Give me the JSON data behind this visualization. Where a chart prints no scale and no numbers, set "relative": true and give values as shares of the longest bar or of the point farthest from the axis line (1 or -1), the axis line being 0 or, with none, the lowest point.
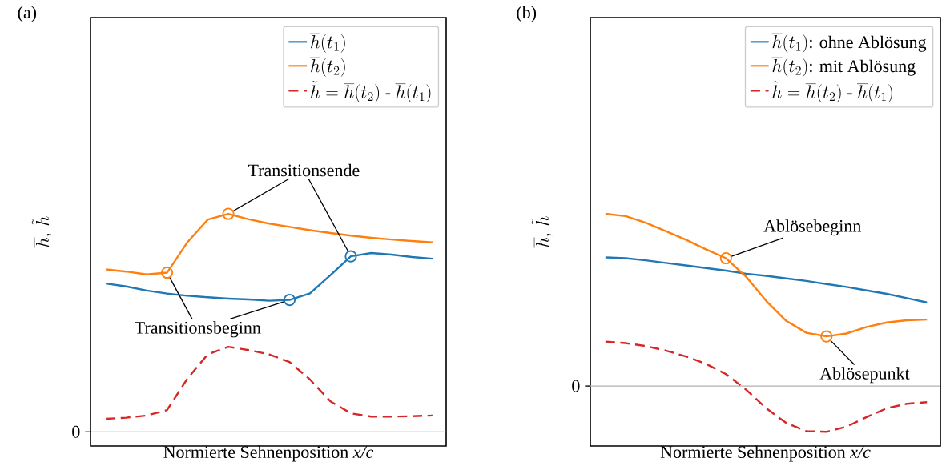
{
  "chart_data": [
    {
      "type": "line",
      "title": "(a)",
      "xlabel": "Normierte Sehnenposition *x/c*",
      "ylabel": "\\overline{h},\\,\\tilde{h}",
      "relative": true,
      "legend": "top right",
      "categories": [
        null,
        null,
        null,
        null,
        null,
        null,
        null,
        null,
        null,
        null,
        null,
        null,
        null,
        null,
        null,
        null,
        null
      ],
      "series": [
        {
          "name": "\\overline{h}(t_1)",
          "color": "#1f77b4",
          "line_style": "solid",
          "values": [
            0.68,
            0.667,
            0.648,
            0.634,
            0.624,
            0.617,
            0.611,
            0.607,
            0.601,
            0.605,
            0.635,
            0.719,
            0.805,
            0.82,
            0.813,
            0.802,
            0.794
          ]
        },
        {
          "name": "\\overline{h}(t_2)",
          "color": "#ff7f0e",
          "line_style": "solid",
          "values": [
            0.745,
            0.735,
            0.722,
            0.73,
            0.87,
            0.974,
            1.0,
            0.975,
            0.955,
            0.94,
            0.925,
            0.912,
            0.9,
            0.89,
            0.882,
            0.875,
            0.869
          ]
        },
        {
          "name": "\\tilde{h} = \\overline{h}(t_2)\\mbox{ - }\\overline{h}(t_1)",
          "color": "#d62728",
          "line_style": "dashed",
          "values": [
            0.06,
            0.065,
            0.075,
            0.1,
            0.245,
            0.356,
            0.39,
            0.375,
            0.355,
            0.32,
            0.24,
            0.14,
            0.085,
            0.07,
            0.07,
            0.072,
            0.075
          ]
        }
      ],
      "ref_lines": [
        {
          "axis": "y",
          "value": 0,
          "label": "0",
          "color": "#b0b0b0"
        }
      ],
      "annotations": [
        "Transitionsende",
        "Transitionsbeginn"
      ]
    },
    {
      "type": "line",
      "title": "(b)",
      "xlabel": "Normierte Sehnenposition *x/c*",
      "ylabel": "\\overline{h},\\,\\tilde{h}",
      "relative": true,
      "legend": "top right",
      "categories": [
        null,
        null,
        null,
        null,
        null,
        null,
        null,
        null,
        null,
        null,
        null,
        null,
        null,
        null,
        null,
        null,
        null
      ],
      "series": [
        {
          "name": "\\overline{h}(t_1)\\mbox{: ohne Ablösung}",
          "color": "#1f77b4",
          "line_style": "solid",
          "values": [
            0.747,
            0.742,
            0.73,
            0.715,
            0.7,
            0.685,
            0.67,
            0.652,
            0.64,
            0.625,
            0.61,
            0.592,
            0.575,
            0.555,
            0.535,
            0.51,
            0.485
          ]
        },
        {
          "name": "\\overline{h}(t_2)\\mbox{: mit Ablösung}",
          "color": "#ff7f0e",
          "line_style": "solid",
          "values": [
            1.0,
            0.987,
            0.948,
            0.9,
            0.85,
            0.794,
            0.742,
            0.635,
            0.494,
            0.378,
            0.309,
            0.288,
            0.305,
            0.343,
            0.369,
            0.382,
            0.386
          ]
        },
        {
          "name": "\\tilde{h} = \\overline{h}(t_2)\\mbox{ - }\\overline{h}(t_1)",
          "color": "#d62728",
          "line_style": "dashed",
          "values": [
            0.258,
            0.249,
            0.232,
            0.206,
            0.172,
            0.129,
            0.069,
            -0.021,
            -0.129,
            -0.215,
            -0.262,
            -0.266,
            -0.236,
            -0.18,
            -0.129,
            -0.103,
            -0.094
          ]
        }
      ],
      "ref_lines": [
        {
          "axis": "y",
          "value": 0,
          "label": "0",
          "color": "#b0b0b0"
        }
      ],
      "annotations": [
        "Ablösebeginn",
        "Ablösepunkt"
      ]
    }
  ]
}
